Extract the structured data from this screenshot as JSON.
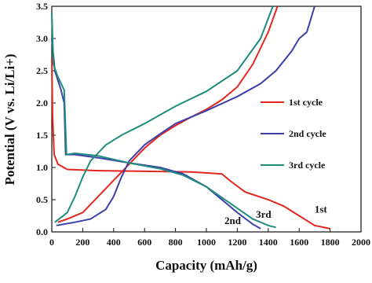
{
  "chart_data": {
    "type": "line",
    "x_label": "Capacity (mAh/g)",
    "y_label": "Potential (V vs. Li/Li+)",
    "xlim": [
      0,
      2000
    ],
    "ylim": [
      0,
      3.5
    ],
    "xticks": [
      0,
      200,
      400,
      600,
      800,
      1000,
      1200,
      1400,
      1600,
      1800,
      2000
    ],
    "yticks": [
      {
        "value": 0,
        "label": "0.0"
      },
      {
        "value": 0.5,
        "label": "0.5"
      },
      {
        "value": 1,
        "label": "1.0"
      },
      {
        "value": 1.5,
        "label": "1.5"
      },
      {
        "value": 2,
        "label": "2.0"
      },
      {
        "value": 2.5,
        "label": "2.5"
      },
      {
        "value": 3,
        "label": "3.0"
      },
      {
        "value": 3.5,
        "label": "3.5"
      }
    ],
    "series": [
      {
        "name": "1st cycle",
        "color": "#e3261f",
        "x": [
          0,
          5,
          15,
          40,
          100,
          300,
          600,
          900,
          1100,
          1150,
          1250,
          1400,
          1500,
          1600,
          1700,
          1800,
          null,
          40,
          100,
          200,
          300,
          400,
          500,
          600,
          700,
          800,
          900,
          1000,
          1100,
          1200,
          1300,
          1400,
          1460
        ],
        "values": [
          2.7,
          1.8,
          1.2,
          1.05,
          0.97,
          0.95,
          0.94,
          0.93,
          0.9,
          0.8,
          0.62,
          0.5,
          0.4,
          0.25,
          0.1,
          0.05,
          null,
          0.15,
          0.2,
          0.3,
          0.55,
          0.8,
          1.05,
          1.3,
          1.5,
          1.65,
          1.78,
          1.9,
          2.05,
          2.25,
          2.6,
          3.1,
          3.5
        ]
      },
      {
        "name": "2nd cycle",
        "color": "#3a40a8",
        "x": [
          0,
          20,
          60,
          80,
          90,
          150,
          300,
          500,
          700,
          850,
          1000,
          1100,
          1200,
          1300,
          1350,
          null,
          30,
          150,
          250,
          350,
          400,
          450,
          500,
          600,
          700,
          800,
          1000,
          1200,
          1350,
          1450,
          1550,
          1600,
          1650,
          1700
        ],
        "values": [
          3.0,
          2.5,
          2.2,
          2.0,
          1.2,
          1.2,
          1.15,
          1.07,
          1.0,
          0.9,
          0.7,
          0.5,
          0.3,
          0.12,
          0.05,
          null,
          0.1,
          0.15,
          0.2,
          0.35,
          0.55,
          0.85,
          1.1,
          1.35,
          1.52,
          1.68,
          1.88,
          2.1,
          2.3,
          2.5,
          2.8,
          3.0,
          3.1,
          3.5
        ]
      },
      {
        "name": "3rd cycle",
        "color": "#1f8c7d",
        "x": [
          0,
          10,
          40,
          80,
          95,
          150,
          300,
          500,
          700,
          850,
          1000,
          1150,
          1300,
          1400,
          1450,
          null,
          20,
          100,
          150,
          200,
          250,
          350,
          450,
          600,
          800,
          1000,
          1200,
          1350,
          1430
        ],
        "values": [
          3.4,
          2.6,
          2.4,
          2.2,
          1.2,
          1.22,
          1.18,
          1.07,
          0.98,
          0.88,
          0.7,
          0.45,
          0.2,
          0.1,
          0.07,
          null,
          0.15,
          0.3,
          0.55,
          0.85,
          1.1,
          1.35,
          1.5,
          1.68,
          1.95,
          2.18,
          2.5,
          3.0,
          3.5
        ]
      }
    ],
    "annotations": [
      "1st",
      "2nd",
      "3rd"
    ]
  }
}
